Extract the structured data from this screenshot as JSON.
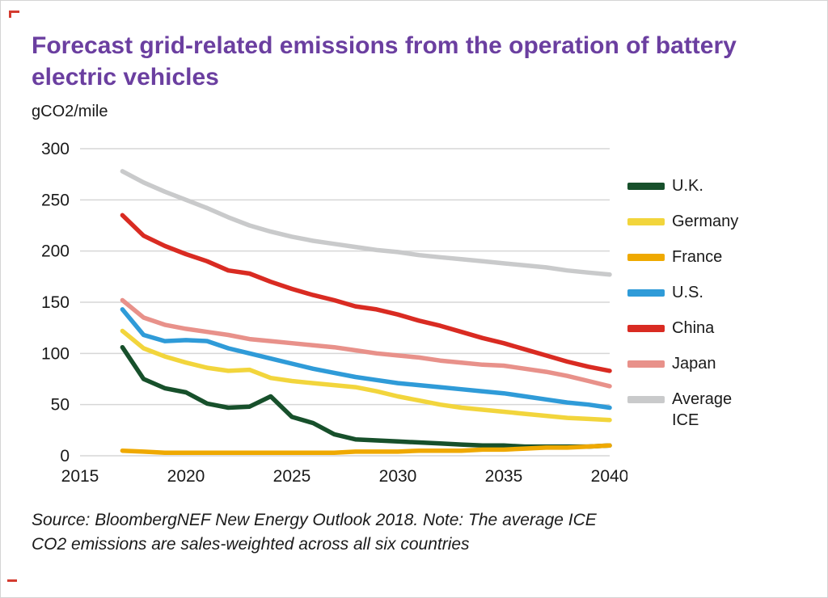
{
  "page": {
    "title": "Forecast grid-related emissions from the operation of battery electric vehicles",
    "source_note": "Source: BloombergNEF New Energy Outlook 2018. Note: The average ICE CO2 emissions are sales-weighted across all six countries"
  },
  "chart_data": {
    "type": "line",
    "title": "Forecast grid-related emissions from the operation of battery electric vehicles",
    "xlabel": "",
    "ylabel": "gCO2/mile",
    "xlim": [
      2015,
      2040
    ],
    "ylim": [
      0,
      300
    ],
    "x_ticks": [
      2015,
      2020,
      2025,
      2030,
      2035,
      2040
    ],
    "y_ticks": [
      0,
      50,
      100,
      150,
      200,
      250,
      300
    ],
    "grid": "horizontal",
    "legend_position": "right",
    "x": [
      2017,
      2018,
      2019,
      2020,
      2021,
      2022,
      2023,
      2024,
      2025,
      2026,
      2027,
      2028,
      2029,
      2030,
      2031,
      2032,
      2033,
      2034,
      2035,
      2036,
      2037,
      2038,
      2039,
      2040
    ],
    "series": [
      {
        "name": "U.K.",
        "color": "#17502B",
        "values": [
          106,
          75,
          66,
          62,
          51,
          47,
          48,
          58,
          38,
          32,
          21,
          16,
          15,
          14,
          13,
          12,
          11,
          10,
          10,
          9,
          9,
          9,
          9,
          10
        ]
      },
      {
        "name": "Germany",
        "color": "#F2D53C",
        "values": [
          122,
          105,
          97,
          91,
          86,
          83,
          84,
          76,
          73,
          71,
          69,
          67,
          63,
          58,
          54,
          50,
          47,
          45,
          43,
          41,
          39,
          37,
          36,
          35
        ]
      },
      {
        "name": "France",
        "color": "#EFA900",
        "values": [
          5,
          4,
          3,
          3,
          3,
          3,
          3,
          3,
          3,
          3,
          3,
          4,
          4,
          4,
          5,
          5,
          5,
          6,
          6,
          7,
          8,
          8,
          9,
          10
        ]
      },
      {
        "name": "U.S.",
        "color": "#2F9BD8",
        "values": [
          143,
          118,
          112,
          113,
          112,
          105,
          100,
          95,
          90,
          85,
          81,
          77,
          74,
          71,
          69,
          67,
          65,
          63,
          61,
          58,
          55,
          52,
          50,
          47
        ]
      },
      {
        "name": "China",
        "color": "#D92B22",
        "values": [
          235,
          215,
          205,
          197,
          190,
          181,
          178,
          170,
          163,
          157,
          152,
          146,
          143,
          138,
          132,
          127,
          121,
          115,
          110,
          104,
          98,
          92,
          87,
          83
        ]
      },
      {
        "name": "Japan",
        "color": "#E8918A",
        "values": [
          152,
          135,
          128,
          124,
          121,
          118,
          114,
          112,
          110,
          108,
          106,
          103,
          100,
          98,
          96,
          93,
          91,
          89,
          88,
          85,
          82,
          78,
          73,
          68
        ]
      },
      {
        "name": "Average ICE",
        "color": "#C9CACB",
        "values": [
          278,
          267,
          258,
          250,
          242,
          233,
          225,
          219,
          214,
          210,
          207,
          204,
          201,
          199,
          196,
          194,
          192,
          190,
          188,
          186,
          184,
          181,
          179,
          177
        ]
      }
    ]
  },
  "colors": {
    "title": "#6B3FA0",
    "gridline": "#d6d6d6",
    "axis_text": "#1a1a1a",
    "crop_mark": "#d43b30"
  }
}
